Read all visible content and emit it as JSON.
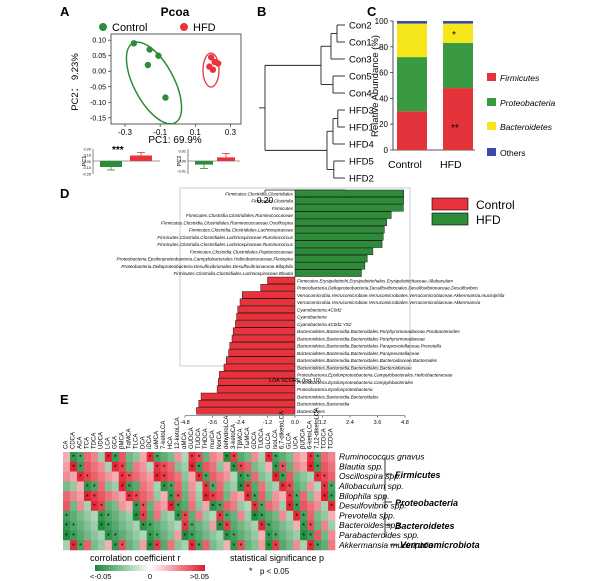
{
  "colors": {
    "control": "#e8323c",
    "hfd": "#2e8b3a",
    "firmicutes": "#e5333b",
    "proteobacteria": "#3a9a41",
    "bacteroidetes": "#f5e51b",
    "others": "#3b4aa8"
  },
  "panels": {
    "A": "A",
    "B": "B",
    "C": "C",
    "D": "D",
    "E": "E"
  },
  "panelA": {
    "title": "Pcoa",
    "legend": [
      "Control",
      "HFD"
    ],
    "xlabel": "PC1: 69.9%",
    "ylabel": "PC2： 9.23%",
    "xticks": [
      -0.3,
      -0.1,
      0.1,
      0.3
    ],
    "xtick_labels": [
      "-0.3",
      "-0.1",
      "0.1",
      "0.3"
    ],
    "yticks": [
      0.1,
      0.05,
      0,
      -0.05,
      -0.1,
      -0.15
    ],
    "ytick_labels": [
      "0.10",
      "0.05",
      "0.00",
      "-0.05",
      "-0.10",
      "-0.15"
    ],
    "sig": "***",
    "bar1_ylabel": "PC1",
    "bar2_ylabel": "PC2",
    "bar1_ticks": [
      "0.20",
      "0.10",
      "0.00",
      "-0.10",
      "-0.20"
    ],
    "bar2_ticks": [
      "0.01",
      "0.00",
      "-0.01"
    ]
  },
  "panelB": {
    "labels": [
      "Con2",
      "Con1",
      "Con3",
      "Con5",
      "Con4",
      "HFD3",
      "HFD1",
      "HFD4",
      "HFD5",
      "HFD2"
    ],
    "xticks": [
      "0.20",
      "0.10",
      "0.00"
    ]
  },
  "panelC": {
    "ylabel": "Relative Abundance (%)",
    "groups": [
      "Control",
      "HFD"
    ],
    "yticks": [
      "0",
      "20",
      "40",
      "60",
      "80",
      "100"
    ],
    "legend": [
      "Firmicutes",
      "Proteobacteria",
      "Bacteroidetes",
      "Others"
    ],
    "sig_hfd_bacteroidetes": "*",
    "sig_hfd_firmicutes": "**"
  },
  "panelD": {
    "xlabel": "LDA SCORE (log 10)",
    "xticks": [
      "-4.8",
      "-3.6",
      "-2.4",
      "-1.2",
      "0.0",
      "1.2",
      "2.4",
      "3.6",
      "4.8"
    ],
    "legend": [
      "Control",
      "HFD"
    ]
  },
  "panelE": {
    "cols": [
      "CA",
      "CDCA",
      "ACA",
      "TCA",
      "TDCA",
      "UDCA",
      "LCA",
      "GCA",
      "βMCA",
      "TαMCA",
      "TLCA",
      "DCA",
      "iDCA",
      "ωMCA",
      "7-ketoLCA",
      "HCA",
      "12-ketoLCA",
      "αMCA",
      "GUDCA",
      "TUDCA",
      "THDCA",
      "murCA",
      "NorCA",
      "dehydroLCA",
      "3-ketoCA",
      "TβMCA",
      "TωMCA",
      "GDCA",
      "TUDCA",
      "GLCA",
      "isoLCA",
      "6,7-diketoLCA",
      "GLCA",
      "UCA",
      "βUDCA",
      "6-ketoLCA",
      "7,12-diketoLCA",
      "TCDCA",
      "TCDCA"
    ],
    "rows": [
      "Ruminococcus gnavus",
      "Blautia spp.",
      "Oscillospira spp.",
      "Allobaculum spp.",
      "Bilophila spp.",
      "Desulfovibrio spp.",
      "Prevotella spp.",
      "Bacteroides spp.",
      "Parabacteroides spp.",
      "Akkermansia muciniphila"
    ],
    "phyla": [
      "Firmicutes",
      "Proteobacteria",
      "Bacteroidetes",
      "Verrucomicrobiota"
    ],
    "cbar_title": "corrolation coefficient r",
    "cbar_labels": [
      "<-0.05",
      "0",
      ">0.05"
    ],
    "sig_title": "statistical significance p",
    "sig_legend": "p < 0.05",
    "sig_mark": "*",
    "values_note": "",
    "cells": [
      "+--++-+-+--++---+-++-++-+--+-+---+++-++",
      "++-+++-++-++-+++--+-++-+-++--+-+-+++-++",
      "+++++++++++++++++-++-+++---+--+-+---+++",
      "--+--+--+--++---+-+-+-+---+-+--++--+-+-",
      "+++++++++++++-+-+-+-+++-+++-+-+++-+-++-",
      "+-+-++--++-+-+++--+-+--++--+-++-+-+++-+",
      "-----------+-+---+-+--+--+-----+-+-+--+",
      "-----------------+---+-+----+----+-+-+-",
      "----------------+-----------+-------+-+",
      "-+-+--+-+--+-+-+--+-+--+-+--+-+--+-+--+"
    ]
  },
  "chart_data": [
    {
      "type": "scatter",
      "title": "Pcoa",
      "xlabel": "PC1: 69.9%",
      "ylabel": "PC2： 9.23%",
      "xlim": [
        -0.38,
        0.36
      ],
      "ylim": [
        -0.17,
        0.12
      ],
      "series": [
        {
          "name": "Control",
          "points": [
            [
              -0.25,
              0.09
            ],
            [
              -0.16,
              0.07
            ],
            [
              -0.11,
              0.05
            ],
            [
              -0.17,
              0.02
            ],
            [
              -0.07,
              -0.085
            ]
          ]
        },
        {
          "name": "HFD",
          "points": [
            [
              0.19,
              0.045
            ],
            [
              0.21,
              0.03
            ],
            [
              0.18,
              0.015
            ],
            [
              0.2,
              0.005
            ],
            [
              0.23,
              0.025
            ]
          ]
        }
      ]
    },
    {
      "type": "bar",
      "title": "PC1",
      "categories": [
        "Control",
        "HFD"
      ],
      "values": [
        -0.12,
        0.11
      ]
    },
    {
      "type": "bar",
      "title": "PC2",
      "categories": [
        "Control",
        "HFD"
      ],
      "values": [
        -0.003,
        0.003
      ]
    },
    {
      "type": "bar",
      "title": "Relative Abundance (%)",
      "categories": [
        "Control",
        "HFD"
      ],
      "series": [
        {
          "name": "Firmicutes",
          "values": [
            30,
            48
          ]
        },
        {
          "name": "Proteobacteria",
          "values": [
            42,
            35
          ]
        },
        {
          "name": "Bacteroidetes",
          "values": [
            26,
            15
          ]
        },
        {
          "name": "Others",
          "values": [
            2,
            2
          ]
        }
      ],
      "ylim": [
        0,
        100
      ]
    },
    {
      "type": "bar",
      "title": "LDA SCORE (log 10)",
      "xlim": [
        -4.8,
        4.8
      ],
      "series": [
        {
          "name": "HFD",
          "labels": [
            "Firmicutes.Clostridia.Clostridiales",
            "Firmicutes.Clostridia",
            "Firmicutes",
            "Firmicutes.Clostridia.Clostridiales.Ruminococcaceae",
            "Firmicutes.Clostridia.Clostridiales.Ruminococcaceae.Oscillospira",
            "Firmicutes.Clostridia.Clostridiales.Lachnospiraceae",
            "Firmicutes.Clostridia.Clostridiales.Lachnospiraceae.Ruminococcus",
            "Firmicutes.Clostridia.Clostridiales.Lachnospiraceae.Ruminococcus",
            "Firmicutes.Clostridia.Clostridiales.Peptococcaceae",
            "Proteobacteria.Epsilonproteobacteria.Campylobacterales.Helicobacteraceae.Flexispira",
            "Proteobacteria.Deltaproteobacteria.Desulfovibrionales.Desulfovibrionaceae.Bilophila",
            "Firmicutes.Clostridia.Clostridiales.Lachnospiraceae.Blautia"
          ],
          "values": [
            4.75,
            4.74,
            4.73,
            4.2,
            4.0,
            3.9,
            3.85,
            3.8,
            3.4,
            3.15,
            3.05,
            2.9
          ]
        },
        {
          "name": "Control",
          "labels": [
            "Firmicutes.Erysipelotrichi.Erysipelotrichales.Erysipelotrichaceae.Allobaculum",
            "Proteobacteria.Deltaproteobacteria.Desulfovibrionales.Desulfovibrionaceae.Desulfovibrio",
            "Verrucomicrobia.Verrucomicrobiae.Verrucomicrobiales.Verrucomicrobiaceae.Akkermansia.muciniphila",
            "Verrucomicrobia.Verrucomicrobiae.Verrucomicrobiales.Verrucomicrobiaceae.Akkermansia",
            "Cyanobacteria.4C0d2",
            "Cyanobacteria",
            "Cyanobacteria.4C0d2.YS2",
            "Bacteroidetes.Bacteroidia.Bacteroidales.Porphyromonadaceae.Parabacteroides",
            "Bacteroidetes.Bacteroidia.Bacteroidales.Porphyromonadaceae",
            "Bacteroidetes.Bacteroidia.Bacteroidales.Paraprevotellaceae.Prevotella",
            "Bacteroidetes.Bacteroidia.Bacteroidales.Paraprevotellaceae",
            "Bacteroidetes.Bacteroidia.Bacteroidales.Bacteroidaceae.Bacteroides",
            "Bacteroidetes.Bacteroidia.Bacteroidales.Bacteroidaceae",
            "Proteobacteria.Epsilonproteobacteria.Campylobacterales.Helicobacteraceae",
            "Proteobacteria.Epsilonproteobacteria.Campylobacterales",
            "Proteobacteria.Epsilonproteobacteria",
            "Bacteroidetes.Bacteroidia.Bacteroidales",
            "Bacteroidetes.Bacteroidia",
            "Bacteroidetes"
          ],
          "values": [
            -1.2,
            -1.5,
            -2.3,
            -2.4,
            -2.5,
            -2.55,
            -2.6,
            -2.7,
            -2.75,
            -2.85,
            -2.9,
            -3.0,
            -3.1,
            -3.3,
            -3.35,
            -3.4,
            -4.1,
            -4.2,
            -4.3
          ]
        }
      ]
    },
    {
      "type": "heatmap",
      "title": "corrolation coefficient r",
      "xlabel": "",
      "ylabel": "",
      "range": [
        -0.05,
        0.05
      ]
    }
  ]
}
